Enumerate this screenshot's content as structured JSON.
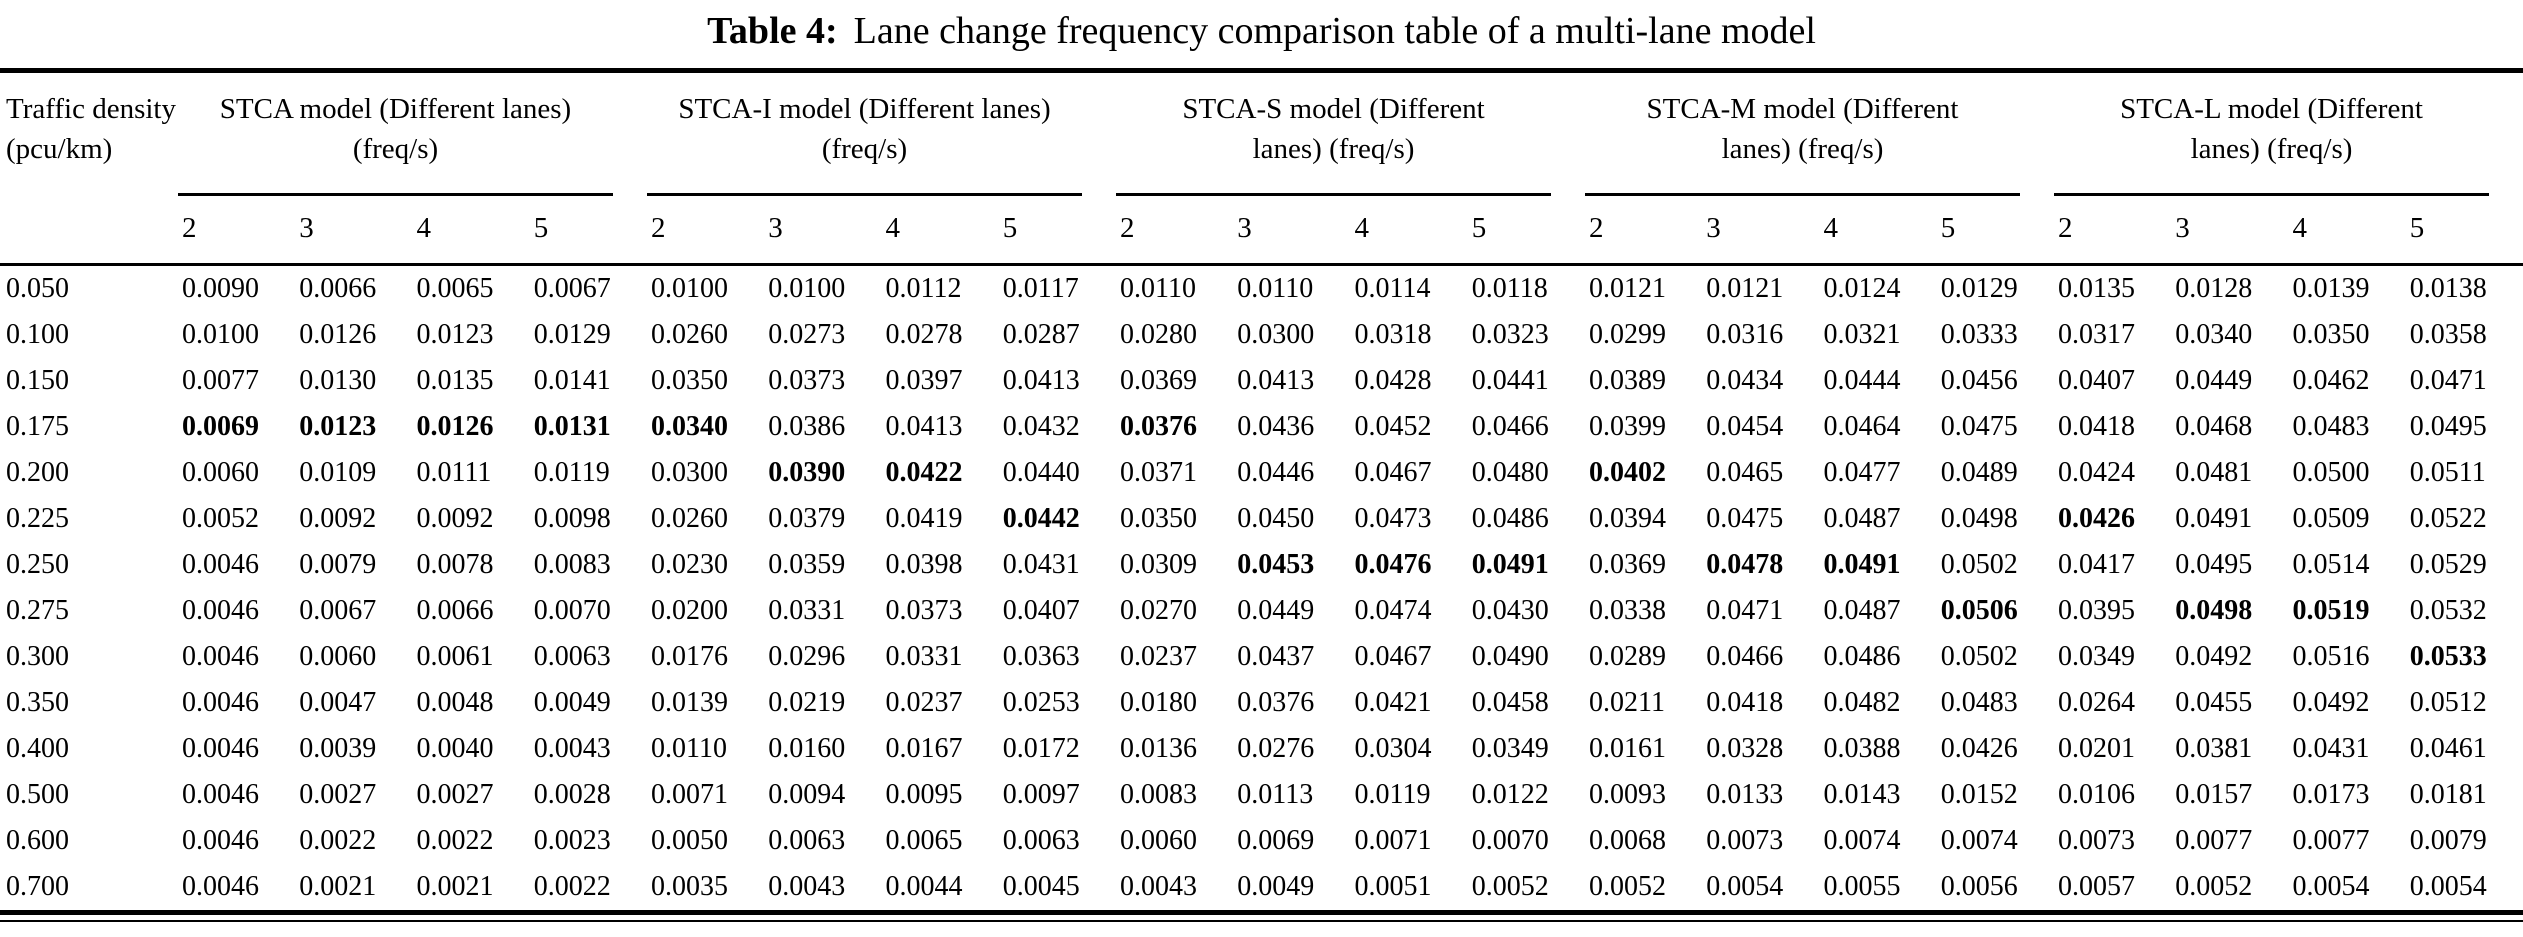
{
  "title": {
    "label": "Table 4:",
    "text": "Lane change frequency comparison table of a multi-lane model"
  },
  "header": {
    "density": "Traffic density (pcu/km)",
    "groups": [
      {
        "name": "STCA",
        "line1": "STCA model (Different lanes)",
        "line2": "(freq/s)",
        "subcols": [
          "2",
          "3",
          "4",
          "5"
        ]
      },
      {
        "name": "STCA-I",
        "line1": "STCA-I model (Different lanes)",
        "line2": "(freq/s)",
        "subcols": [
          "2",
          "3",
          "4",
          "5"
        ]
      },
      {
        "name": "STCA-S",
        "line1": "STCA-S model (Different",
        "line2": "lanes) (freq/s)",
        "subcols": [
          "2",
          "3",
          "4",
          "5"
        ]
      },
      {
        "name": "STCA-M",
        "line1": "STCA-M model (Different",
        "line2": "lanes) (freq/s)",
        "subcols": [
          "2",
          "3",
          "4",
          "5"
        ]
      },
      {
        "name": "STCA-L",
        "line1": "STCA-L model (Different",
        "line2": "lanes) (freq/s)",
        "subcols": [
          "2",
          "3",
          "4",
          "5"
        ]
      }
    ]
  },
  "rows": [
    {
      "density": "0.050",
      "bold": [],
      "values": [
        "0.0090",
        "0.0066",
        "0.0065",
        "0.0067",
        "0.0100",
        "0.0100",
        "0.0112",
        "0.0117",
        "0.0110",
        "0.0110",
        "0.0114",
        "0.0118",
        "0.0121",
        "0.0121",
        "0.0124",
        "0.0129",
        "0.0135",
        "0.0128",
        "0.0139",
        "0.0138"
      ]
    },
    {
      "density": "0.100",
      "bold": [],
      "values": [
        "0.0100",
        "0.0126",
        "0.0123",
        "0.0129",
        "0.0260",
        "0.0273",
        "0.0278",
        "0.0287",
        "0.0280",
        "0.0300",
        "0.0318",
        "0.0323",
        "0.0299",
        "0.0316",
        "0.0321",
        "0.0333",
        "0.0317",
        "0.0340",
        "0.0350",
        "0.0358"
      ]
    },
    {
      "density": "0.150",
      "bold": [],
      "values": [
        "0.0077",
        "0.0130",
        "0.0135",
        "0.0141",
        "0.0350",
        "0.0373",
        "0.0397",
        "0.0413",
        "0.0369",
        "0.0413",
        "0.0428",
        "0.0441",
        "0.0389",
        "0.0434",
        "0.0444",
        "0.0456",
        "0.0407",
        "0.0449",
        "0.0462",
        "0.0471"
      ]
    },
    {
      "density": "0.175",
      "bold": [
        0,
        1,
        2,
        3,
        4,
        8
      ],
      "values": [
        "0.0069",
        "0.0123",
        "0.0126",
        "0.0131",
        "0.0340",
        "0.0386",
        "0.0413",
        "0.0432",
        "0.0376",
        "0.0436",
        "0.0452",
        "0.0466",
        "0.0399",
        "0.0454",
        "0.0464",
        "0.0475",
        "0.0418",
        "0.0468",
        "0.0483",
        "0.0495"
      ]
    },
    {
      "density": "0.200",
      "bold": [
        5,
        6,
        12
      ],
      "values": [
        "0.0060",
        "0.0109",
        "0.0111",
        "0.0119",
        "0.0300",
        "0.0390",
        "0.0422",
        "0.0440",
        "0.0371",
        "0.0446",
        "0.0467",
        "0.0480",
        "0.0402",
        "0.0465",
        "0.0477",
        "0.0489",
        "0.0424",
        "0.0481",
        "0.0500",
        "0.0511"
      ]
    },
    {
      "density": "0.225",
      "bold": [
        7,
        16
      ],
      "values": [
        "0.0052",
        "0.0092",
        "0.0092",
        "0.0098",
        "0.0260",
        "0.0379",
        "0.0419",
        "0.0442",
        "0.0350",
        "0.0450",
        "0.0473",
        "0.0486",
        "0.0394",
        "0.0475",
        "0.0487",
        "0.0498",
        "0.0426",
        "0.0491",
        "0.0509",
        "0.0522"
      ]
    },
    {
      "density": "0.250",
      "bold": [
        9,
        10,
        11,
        13,
        14
      ],
      "values": [
        "0.0046",
        "0.0079",
        "0.0078",
        "0.0083",
        "0.0230",
        "0.0359",
        "0.0398",
        "0.0431",
        "0.0309",
        "0.0453",
        "0.0476",
        "0.0491",
        "0.0369",
        "0.0478",
        "0.0491",
        "0.0502",
        "0.0417",
        "0.0495",
        "0.0514",
        "0.0529"
      ]
    },
    {
      "density": "0.275",
      "bold": [
        15,
        17,
        18
      ],
      "values": [
        "0.0046",
        "0.0067",
        "0.0066",
        "0.0070",
        "0.0200",
        "0.0331",
        "0.0373",
        "0.0407",
        "0.0270",
        "0.0449",
        "0.0474",
        "0.0430",
        "0.0338",
        "0.0471",
        "0.0487",
        "0.0506",
        "0.0395",
        "0.0498",
        "0.0519",
        "0.0532"
      ]
    },
    {
      "density": "0.300",
      "bold": [
        19
      ],
      "values": [
        "0.0046",
        "0.0060",
        "0.0061",
        "0.0063",
        "0.0176",
        "0.0296",
        "0.0331",
        "0.0363",
        "0.0237",
        "0.0437",
        "0.0467",
        "0.0490",
        "0.0289",
        "0.0466",
        "0.0486",
        "0.0502",
        "0.0349",
        "0.0492",
        "0.0516",
        "0.0533"
      ]
    },
    {
      "density": "0.350",
      "bold": [],
      "values": [
        "0.0046",
        "0.0047",
        "0.0048",
        "0.0049",
        "0.0139",
        "0.0219",
        "0.0237",
        "0.0253",
        "0.0180",
        "0.0376",
        "0.0421",
        "0.0458",
        "0.0211",
        "0.0418",
        "0.0482",
        "0.0483",
        "0.0264",
        "0.0455",
        "0.0492",
        "0.0512"
      ]
    },
    {
      "density": "0.400",
      "bold": [],
      "values": [
        "0.0046",
        "0.0039",
        "0.0040",
        "0.0043",
        "0.0110",
        "0.0160",
        "0.0167",
        "0.0172",
        "0.0136",
        "0.0276",
        "0.0304",
        "0.0349",
        "0.0161",
        "0.0328",
        "0.0388",
        "0.0426",
        "0.0201",
        "0.0381",
        "0.0431",
        "0.0461"
      ]
    },
    {
      "density": "0.500",
      "bold": [],
      "values": [
        "0.0046",
        "0.0027",
        "0.0027",
        "0.0028",
        "0.0071",
        "0.0094",
        "0.0095",
        "0.0097",
        "0.0083",
        "0.0113",
        "0.0119",
        "0.0122",
        "0.0093",
        "0.0133",
        "0.0143",
        "0.0152",
        "0.0106",
        "0.0157",
        "0.0173",
        "0.0181"
      ]
    },
    {
      "density": "0.600",
      "bold": [],
      "values": [
        "0.0046",
        "0.0022",
        "0.0022",
        "0.0023",
        "0.0050",
        "0.0063",
        "0.0065",
        "0.0063",
        "0.0060",
        "0.0069",
        "0.0071",
        "0.0070",
        "0.0068",
        "0.0073",
        "0.0074",
        "0.0074",
        "0.0073",
        "0.0077",
        "0.0077",
        "0.0079"
      ]
    },
    {
      "density": "0.700",
      "bold": [],
      "values": [
        "0.0046",
        "0.0021",
        "0.0021",
        "0.0022",
        "0.0035",
        "0.0043",
        "0.0044",
        "0.0045",
        "0.0043",
        "0.0049",
        "0.0051",
        "0.0052",
        "0.0052",
        "0.0054",
        "0.0055",
        "0.0056",
        "0.0057",
        "0.0052",
        "0.0054",
        "0.0054"
      ]
    }
  ],
  "colors": {
    "text": "#000000",
    "background": "#ffffff",
    "rule": "#000000"
  }
}
